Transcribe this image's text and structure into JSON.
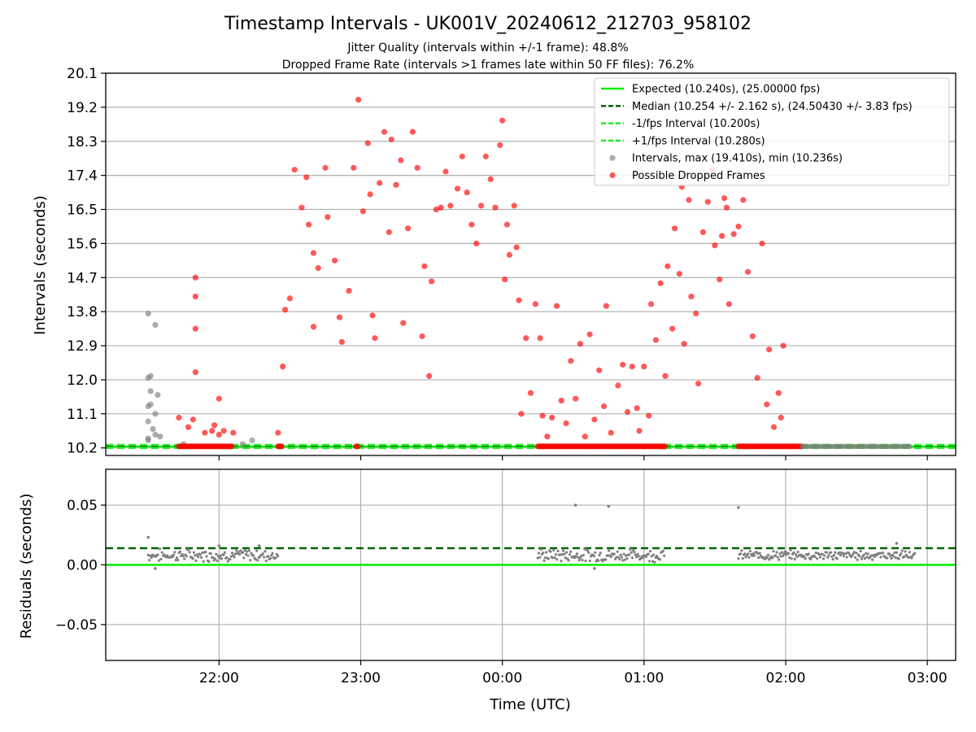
{
  "title": "Timestamp Intervals - UK001V_20240612_212703_958102",
  "subtitle_1": "Jitter Quality (intervals within +/-1 frame): 48.8%",
  "subtitle_2": "Dropped Frame Rate (intervals >1 frames late within 50 FF files): 76.2%",
  "colors": {
    "expected": "#00ee00",
    "median": "#006400",
    "fps_band": "#22ee22",
    "intervals": "#808080",
    "dropped": "#ff0000",
    "grid": "#b0b0b0"
  },
  "chart_data": [
    {
      "type": "scatter",
      "panel": "top",
      "ylabel": "Intervals (seconds)",
      "ylim": [
        10.0,
        20.1
      ],
      "yticks": [
        "10.2",
        "11.1",
        "12.0",
        "12.9",
        "13.8",
        "14.7",
        "15.6",
        "16.5",
        "17.4",
        "18.3",
        "19.2",
        "20.1"
      ],
      "xlim": [
        "21:12",
        "03:12"
      ],
      "grid": "y",
      "legend_position": "upper right",
      "legend": [
        "Expected (10.240s), (25.00000 fps)",
        "Median (10.254 +/- 2.162 s), (24.50430 +/- 3.83 fps)",
        "-1/fps Interval (10.200s)",
        "+1/fps Interval (10.280s)",
        "Intervals, max (19.410s), min (10.236s)",
        "Possible Dropped Frames"
      ],
      "lines": {
        "expected": 10.24,
        "median": 10.254,
        "minus_1_fps": 10.2,
        "plus_1_fps": 10.28
      },
      "series": [
        {
          "name": "Intervals, max (19.410s), min (10.236s)",
          "points": [
            [
              "21:30",
              13.75
            ],
            [
              "21:33",
              13.45
            ],
            [
              "21:31",
              12.1
            ],
            [
              "21:30",
              12.05
            ],
            [
              "21:31",
              11.7
            ],
            [
              "21:30",
              11.3
            ],
            [
              "21:31",
              11.35
            ],
            [
              "21:33",
              11.1
            ],
            [
              "21:34",
              11.6
            ],
            [
              "21:30",
              10.9
            ],
            [
              "21:32",
              10.7
            ],
            [
              "21:33",
              10.55
            ],
            [
              "21:30",
              10.45
            ],
            [
              "21:30",
              10.4
            ],
            [
              "21:35",
              10.5
            ],
            [
              "22:14",
              10.4
            ],
            [
              "21:45",
              10.3
            ],
            [
              "22:10",
              10.3
            ]
          ]
        },
        {
          "name": "Possible Dropped Frames",
          "points": [
            [
              "21:43",
              11.0
            ],
            [
              "21:47",
              10.75
            ],
            [
              "21:49",
              10.95
            ],
            [
              "21:50",
              14.7
            ],
            [
              "21:50",
              14.2
            ],
            [
              "21:50",
              13.35
            ],
            [
              "21:50",
              12.2
            ],
            [
              "21:54",
              10.6
            ],
            [
              "21:57",
              10.65
            ],
            [
              "21:58",
              10.8
            ],
            [
              "22:00",
              10.55
            ],
            [
              "22:00",
              11.5
            ],
            [
              "22:02",
              10.65
            ],
            [
              "22:06",
              10.6
            ],
            [
              "22:25",
              10.6
            ],
            [
              "22:27",
              12.35
            ],
            [
              "22:28",
              13.85
            ],
            [
              "22:30",
              14.15
            ],
            [
              "22:32",
              17.55
            ],
            [
              "22:35",
              16.55
            ],
            [
              "22:37",
              17.35
            ],
            [
              "22:38",
              16.1
            ],
            [
              "22:40",
              15.35
            ],
            [
              "22:40",
              13.4
            ],
            [
              "22:42",
              14.95
            ],
            [
              "22:45",
              17.6
            ],
            [
              "22:46",
              16.3
            ],
            [
              "22:49",
              15.15
            ],
            [
              "22:51",
              13.65
            ],
            [
              "22:52",
              13.0
            ],
            [
              "22:55",
              14.35
            ],
            [
              "22:57",
              17.6
            ],
            [
              "22:59",
              19.4
            ],
            [
              "23:01",
              16.45
            ],
            [
              "23:03",
              18.25
            ],
            [
              "23:04",
              16.9
            ],
            [
              "23:05",
              13.7
            ],
            [
              "23:06",
              13.1
            ],
            [
              "23:08",
              17.2
            ],
            [
              "23:10",
              18.55
            ],
            [
              "23:12",
              15.9
            ],
            [
              "23:13",
              18.35
            ],
            [
              "23:15",
              17.15
            ],
            [
              "23:17",
              17.8
            ],
            [
              "23:18",
              13.5
            ],
            [
              "23:20",
              16.0
            ],
            [
              "23:22",
              18.55
            ],
            [
              "23:24",
              17.6
            ],
            [
              "23:26",
              13.15
            ],
            [
              "23:27",
              15.0
            ],
            [
              "23:29",
              12.1
            ],
            [
              "23:30",
              14.6
            ],
            [
              "23:32",
              16.5
            ],
            [
              "23:34",
              16.55
            ],
            [
              "23:36",
              17.5
            ],
            [
              "23:38",
              16.6
            ],
            [
              "23:41",
              17.05
            ],
            [
              "23:43",
              17.9
            ],
            [
              "23:45",
              16.95
            ],
            [
              "23:47",
              16.1
            ],
            [
              "23:49",
              15.6
            ],
            [
              "23:51",
              16.6
            ],
            [
              "23:53",
              17.9
            ],
            [
              "23:55",
              17.3
            ],
            [
              "23:57",
              16.55
            ],
            [
              "23:59",
              18.2
            ],
            [
              "00:00",
              18.85
            ],
            [
              "00:01",
              14.65
            ],
            [
              "00:02",
              16.1
            ],
            [
              "00:03",
              15.3
            ],
            [
              "00:05",
              16.6
            ],
            [
              "00:06",
              15.5
            ],
            [
              "00:07",
              14.1
            ],
            [
              "00:08",
              11.1
            ],
            [
              "00:10",
              13.1
            ],
            [
              "00:12",
              11.65
            ],
            [
              "00:14",
              14.0
            ],
            [
              "00:16",
              13.1
            ],
            [
              "00:17",
              11.05
            ],
            [
              "00:19",
              10.5
            ],
            [
              "00:21",
              11.0
            ],
            [
              "00:23",
              13.95
            ],
            [
              "00:25",
              11.45
            ],
            [
              "00:27",
              10.85
            ],
            [
              "00:29",
              12.5
            ],
            [
              "00:31",
              11.5
            ],
            [
              "00:33",
              12.95
            ],
            [
              "00:35",
              10.5
            ],
            [
              "00:37",
              13.2
            ],
            [
              "00:39",
              10.95
            ],
            [
              "00:41",
              12.25
            ],
            [
              "00:43",
              11.3
            ],
            [
              "00:44",
              13.95
            ],
            [
              "00:46",
              10.6
            ],
            [
              "00:49",
              11.85
            ],
            [
              "00:51",
              12.4
            ],
            [
              "00:53",
              11.15
            ],
            [
              "00:55",
              12.35
            ],
            [
              "00:57",
              11.25
            ],
            [
              "00:58",
              10.65
            ],
            [
              "01:00",
              12.35
            ],
            [
              "01:02",
              11.05
            ],
            [
              "01:03",
              14.0
            ],
            [
              "01:05",
              13.05
            ],
            [
              "01:07",
              14.55
            ],
            [
              "01:09",
              12.1
            ],
            [
              "01:10",
              15.0
            ],
            [
              "01:12",
              13.35
            ],
            [
              "01:13",
              16.0
            ],
            [
              "01:15",
              14.8
            ],
            [
              "01:16",
              17.1
            ],
            [
              "01:17",
              12.95
            ],
            [
              "01:19",
              16.75
            ],
            [
              "01:20",
              14.2
            ],
            [
              "01:22",
              13.75
            ],
            [
              "01:23",
              11.9
            ],
            [
              "01:25",
              15.9
            ],
            [
              "01:27",
              16.7
            ],
            [
              "01:29",
              17.55
            ],
            [
              "01:30",
              15.55
            ],
            [
              "01:32",
              14.65
            ],
            [
              "01:33",
              15.8
            ],
            [
              "01:34",
              16.8
            ],
            [
              "01:35",
              16.55
            ],
            [
              "01:36",
              14.0
            ],
            [
              "01:38",
              15.85
            ],
            [
              "01:40",
              16.05
            ],
            [
              "01:42",
              16.75
            ],
            [
              "01:44",
              14.85
            ],
            [
              "01:46",
              13.15
            ],
            [
              "01:48",
              12.05
            ],
            [
              "01:50",
              15.6
            ],
            [
              "01:52",
              11.35
            ],
            [
              "01:53",
              12.8
            ],
            [
              "01:55",
              10.75
            ],
            [
              "01:57",
              11.65
            ],
            [
              "01:58",
              11.0
            ],
            [
              "01:59",
              12.9
            ]
          ]
        }
      ]
    },
    {
      "type": "scatter",
      "panel": "bottom",
      "xlabel": "Time (UTC)",
      "ylabel": "Residuals (seconds)",
      "ylim": [
        -0.08,
        0.08
      ],
      "yticks": [
        "0.05",
        "0.00",
        "−0.05"
      ],
      "xticks": [
        "22:00",
        "23:00",
        "00:00",
        "01:00",
        "02:00",
        "03:00"
      ],
      "xlim": [
        "21:12",
        "03:12"
      ],
      "grid": "both",
      "lines": {
        "zero": 0.0,
        "median_residual": 0.014
      },
      "outliers": [
        [
          "00:31",
          0.05
        ],
        [
          "00:45",
          0.049
        ],
        [
          "01:40",
          0.048
        ],
        [
          "21:30",
          0.023
        ],
        [
          "21:33",
          -0.003
        ],
        [
          "22:00",
          0.016
        ],
        [
          "22:17",
          0.016
        ],
        [
          "00:39",
          -0.003
        ],
        [
          "02:47",
          0.018
        ]
      ],
      "clusters": [
        {
          "start": "21:30",
          "end": "22:25",
          "center": 0.008,
          "spread": 0.004
        },
        {
          "start": "00:15",
          "end": "01:09",
          "center": 0.008,
          "spread": 0.004
        },
        {
          "start": "01:40",
          "end": "02:55",
          "center": 0.008,
          "spread": 0.003
        }
      ]
    }
  ]
}
